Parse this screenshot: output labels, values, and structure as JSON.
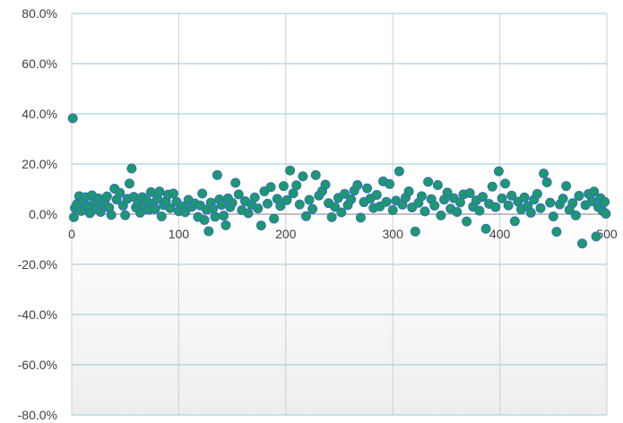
{
  "chart_data": {
    "type": "scatter",
    "title": "",
    "xlabel": "",
    "ylabel": "",
    "xlim": [
      0,
      500
    ],
    "ylim": [
      -80,
      80
    ],
    "x_ticks": [
      0,
      100,
      200,
      300,
      400,
      500
    ],
    "x_tick_labels": [
      "0",
      "100",
      "200",
      "300",
      "400",
      "500"
    ],
    "y_ticks": [
      80,
      60,
      40,
      20,
      0,
      -20,
      -40,
      -60,
      -80
    ],
    "y_tick_labels": [
      "80.0%",
      "60.0%",
      "40.0%",
      "20.0%",
      "0.0%",
      "-20.0%",
      "-40.0%",
      "-60.0%",
      "-80.0%"
    ],
    "grid": true,
    "legend": "none",
    "colors": {
      "fill": "#1b9a6c",
      "stroke": "#3b6bc4",
      "grid": "#c9cfd3",
      "axis": "#808080"
    },
    "series": [
      {
        "values": [
          [
            1,
            38.2
          ],
          [
            2,
            -1.2
          ],
          [
            3,
            2.5
          ],
          [
            5,
            4.1
          ],
          [
            7,
            7.2
          ],
          [
            9,
            1.3
          ],
          [
            11,
            5.2
          ],
          [
            13,
            6.8
          ],
          [
            15,
            3.1
          ],
          [
            17,
            0.4
          ],
          [
            19,
            7.5
          ],
          [
            21,
            4.6
          ],
          [
            23,
            2.2
          ],
          [
            25,
            6.3
          ],
          [
            27,
            0.9
          ],
          [
            29,
            3.8
          ],
          [
            31,
            5.5
          ],
          [
            33,
            7.1
          ],
          [
            35,
            2.6
          ],
          [
            37,
            -0.3
          ],
          [
            40,
            10.2
          ],
          [
            42,
            5.8
          ],
          [
            45,
            8.5
          ],
          [
            48,
            3.4
          ],
          [
            50,
            -0.4
          ],
          [
            52,
            6.1
          ],
          [
            54,
            12.2
          ],
          [
            56,
            18.2
          ],
          [
            58,
            6.9
          ],
          [
            60,
            2.7
          ],
          [
            62,
            4.5
          ],
          [
            64,
            0.6
          ],
          [
            66,
            6.8
          ],
          [
            68,
            3.3
          ],
          [
            70,
            5.4
          ],
          [
            72,
            1.7
          ],
          [
            74,
            8.8
          ],
          [
            76,
            4.2
          ],
          [
            78,
            2.1
          ],
          [
            80,
            6.2
          ],
          [
            82,
            9.0
          ],
          [
            84,
            -0.9
          ],
          [
            86,
            3.6
          ],
          [
            88,
            5.1
          ],
          [
            90,
            7.8
          ],
          [
            92,
            2.4
          ],
          [
            95,
            8.2
          ],
          [
            98,
            4.9
          ],
          [
            100,
            1.2
          ],
          [
            103,
            3.1
          ],
          [
            106,
            0.8
          ],
          [
            109,
            5.7
          ],
          [
            112,
            2.9
          ],
          [
            115,
            4.3
          ],
          [
            118,
            -1.1
          ],
          [
            120,
            3.5
          ],
          [
            122,
            8.2
          ],
          [
            124,
            -2.3
          ],
          [
            126,
            1.8
          ],
          [
            128,
            -6.8
          ],
          [
            130,
            4.6
          ],
          [
            132,
            2.2
          ],
          [
            134,
            -1.0
          ],
          [
            136,
            15.6
          ],
          [
            138,
            5.9
          ],
          [
            140,
            3.7
          ],
          [
            142,
            -0.6
          ],
          [
            144,
            -4.4
          ],
          [
            146,
            6.3
          ],
          [
            148,
            2.8
          ],
          [
            150,
            4.5
          ],
          [
            153,
            12.5
          ],
          [
            156,
            7.9
          ],
          [
            159,
            1.6
          ],
          [
            162,
            5.2
          ],
          [
            165,
            0.4
          ],
          [
            168,
            3.8
          ],
          [
            171,
            6.7
          ],
          [
            174,
            2.3
          ],
          [
            177,
            -4.5
          ],
          [
            180,
            9.1
          ],
          [
            183,
            4.2
          ],
          [
            186,
            10.8
          ],
          [
            189,
            -1.8
          ],
          [
            192,
            6.1
          ],
          [
            195,
            3.3
          ],
          [
            198,
            11.2
          ],
          [
            201,
            5.6
          ],
          [
            204,
            17.4
          ],
          [
            207,
            8.3
          ],
          [
            210,
            11.5
          ],
          [
            213,
            3.9
          ],
          [
            216,
            15.1
          ],
          [
            219,
            -0.8
          ],
          [
            222,
            5.7
          ],
          [
            225,
            2.1
          ],
          [
            228,
            15.6
          ],
          [
            231,
            7.4
          ],
          [
            234,
            9.2
          ],
          [
            237,
            11.8
          ],
          [
            240,
            4.4
          ],
          [
            243,
            -1.2
          ],
          [
            246,
            2.9
          ],
          [
            249,
            6.5
          ],
          [
            252,
            0.7
          ],
          [
            255,
            8.1
          ],
          [
            258,
            3.6
          ],
          [
            261,
            5.9
          ],
          [
            264,
            9.4
          ],
          [
            267,
            11.6
          ],
          [
            270,
            -1.4
          ],
          [
            273,
            4.8
          ],
          [
            276,
            10.3
          ],
          [
            279,
            6.2
          ],
          [
            282,
            2.5
          ],
          [
            285,
            7.7
          ],
          [
            288,
            3.1
          ],
          [
            291,
            13.1
          ],
          [
            294,
            4.9
          ],
          [
            297,
            12.0
          ],
          [
            300,
            1.6
          ],
          [
            303,
            5.4
          ],
          [
            306,
            17.1
          ],
          [
            309,
            3.8
          ],
          [
            312,
            6.6
          ],
          [
            315,
            9.1
          ],
          [
            318,
            2.7
          ],
          [
            321,
            -6.9
          ],
          [
            324,
            4.5
          ],
          [
            327,
            7.2
          ],
          [
            330,
            1.1
          ],
          [
            333,
            12.9
          ],
          [
            336,
            6.0
          ],
          [
            339,
            3.4
          ],
          [
            342,
            11.6
          ],
          [
            345,
            -0.5
          ],
          [
            348,
            5.8
          ],
          [
            351,
            8.6
          ],
          [
            354,
            2.2
          ],
          [
            357,
            6.4
          ],
          [
            360,
            0.9
          ],
          [
            363,
            4.7
          ],
          [
            366,
            7.9
          ],
          [
            369,
            -2.9
          ],
          [
            372,
            8.4
          ],
          [
            375,
            3.0
          ],
          [
            378,
            5.5
          ],
          [
            381,
            1.4
          ],
          [
            384,
            6.9
          ],
          [
            387,
            -5.8
          ],
          [
            390,
            4.1
          ],
          [
            393,
            11.0
          ],
          [
            396,
            2.8
          ],
          [
            399,
            17.1
          ],
          [
            402,
            6.3
          ],
          [
            405,
            12.2
          ],
          [
            408,
            3.5
          ],
          [
            411,
            7.4
          ],
          [
            414,
            -2.8
          ],
          [
            417,
            5.0
          ],
          [
            420,
            1.9
          ],
          [
            423,
            6.7
          ],
          [
            426,
            3.2
          ],
          [
            429,
            0.6
          ],
          [
            432,
            5.8
          ],
          [
            435,
            8.1
          ],
          [
            438,
            2.4
          ],
          [
            441,
            16.2
          ],
          [
            444,
            12.7
          ],
          [
            447,
            4.6
          ],
          [
            450,
            -0.9
          ],
          [
            453,
            -7.0
          ],
          [
            456,
            3.9
          ],
          [
            459,
            6.2
          ],
          [
            462,
            11.2
          ],
          [
            465,
            1.7
          ],
          [
            468,
            4.4
          ],
          [
            471,
            -0.5
          ],
          [
            474,
            7.3
          ],
          [
            477,
            -11.7
          ],
          [
            480,
            3.6
          ],
          [
            483,
            8.1
          ],
          [
            486,
            5.2
          ],
          [
            488,
            9.0
          ],
          [
            490,
            -8.9
          ],
          [
            492,
            2.8
          ],
          [
            494,
            6.4
          ],
          [
            496,
            1.3
          ],
          [
            498,
            4.9
          ],
          [
            499,
            0.2
          ]
        ]
      }
    ]
  }
}
